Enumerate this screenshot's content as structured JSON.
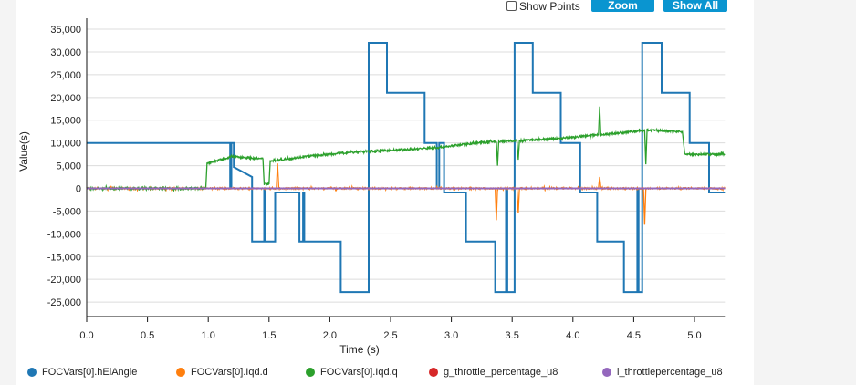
{
  "toolbar": {
    "show_points_label": "Show Points",
    "show_points_checked": false,
    "zoom_label": "Zoom",
    "show_all_label": "Show All"
  },
  "chart_data": {
    "type": "line",
    "xlabel": "Time (s)",
    "ylabel": "Value(s)",
    "xlim": [
      0,
      5.25
    ],
    "ylim": [
      -28000,
      37000
    ],
    "x_ticks": [
      "0.0",
      "0.5",
      "1.0",
      "1.5",
      "2.0",
      "2.5",
      "3.0",
      "3.5",
      "4.0",
      "4.5",
      "5.0"
    ],
    "y_ticks": [
      "35,000",
      "30,000",
      "25,000",
      "20,000",
      "15,000",
      "10,000",
      "5,000",
      "0",
      "-5,000",
      "-10,000",
      "-15,000",
      "-20,000",
      "-25,000"
    ],
    "grid": true,
    "legend_position": "bottom",
    "series": [
      {
        "name": "FOCVars[0].hElAngle",
        "color": "#1f77b4",
        "style": "step",
        "points": [
          [
            0,
            10000
          ],
          [
            1.18,
            10000
          ],
          [
            1.18,
            0
          ],
          [
            1.19,
            0
          ],
          [
            1.19,
            10000
          ],
          [
            1.21,
            10000
          ],
          [
            1.21,
            4700
          ],
          [
            1.36,
            2500
          ],
          [
            1.36,
            -11700
          ],
          [
            1.46,
            -11700
          ],
          [
            1.46,
            0
          ],
          [
            1.47,
            0
          ],
          [
            1.47,
            -11700
          ],
          [
            1.55,
            -11700
          ],
          [
            1.55,
            -900
          ],
          [
            1.75,
            -900
          ],
          [
            1.75,
            -11700
          ],
          [
            1.78,
            -11700
          ],
          [
            1.78,
            -900
          ],
          [
            1.79,
            -900
          ],
          [
            1.79,
            -11700
          ],
          [
            2.09,
            -11700
          ],
          [
            2.09,
            -22800
          ],
          [
            2.32,
            -22800
          ],
          [
            2.32,
            32000
          ],
          [
            2.47,
            32000
          ],
          [
            2.47,
            21000
          ],
          [
            2.78,
            21000
          ],
          [
            2.78,
            10000
          ],
          [
            2.88,
            10000
          ],
          [
            2.88,
            0
          ],
          [
            2.9,
            0
          ],
          [
            2.9,
            10000
          ],
          [
            2.94,
            10000
          ],
          [
            2.94,
            -900
          ],
          [
            3.12,
            -900
          ],
          [
            3.12,
            -11700
          ],
          [
            3.36,
            -11700
          ],
          [
            3.36,
            -22800
          ],
          [
            3.45,
            -22800
          ],
          [
            3.45,
            0
          ],
          [
            3.46,
            0
          ],
          [
            3.46,
            -22800
          ],
          [
            3.52,
            -22800
          ],
          [
            3.52,
            32000
          ],
          [
            3.67,
            32000
          ],
          [
            3.67,
            21000
          ],
          [
            3.9,
            21000
          ],
          [
            3.9,
            10000
          ],
          [
            4.06,
            10000
          ],
          [
            4.06,
            -900
          ],
          [
            4.2,
            -900
          ],
          [
            4.2,
            -11700
          ],
          [
            4.42,
            -11700
          ],
          [
            4.42,
            -22800
          ],
          [
            4.53,
            -22800
          ],
          [
            4.53,
            0
          ],
          [
            4.54,
            0
          ],
          [
            4.54,
            -22800
          ],
          [
            4.57,
            -22800
          ],
          [
            4.57,
            32000
          ],
          [
            4.73,
            32000
          ],
          [
            4.73,
            21000
          ],
          [
            4.96,
            21000
          ],
          [
            4.96,
            10000
          ],
          [
            5.12,
            10000
          ],
          [
            5.12,
            -900
          ],
          [
            5.25,
            -900
          ]
        ]
      },
      {
        "name": "FOCVars[0].Iqd.d",
        "color": "#ff7f0e",
        "style": "noisy",
        "points": [
          [
            0,
            0
          ],
          [
            1.56,
            0
          ],
          [
            1.57,
            5500
          ],
          [
            1.58,
            0
          ],
          [
            3.36,
            0
          ],
          [
            3.37,
            -7000
          ],
          [
            3.38,
            0
          ],
          [
            3.54,
            0
          ],
          [
            3.55,
            -5500
          ],
          [
            3.56,
            0
          ],
          [
            4.21,
            0
          ],
          [
            4.22,
            2500
          ],
          [
            4.23,
            0
          ],
          [
            4.58,
            0
          ],
          [
            4.59,
            -8000
          ],
          [
            4.6,
            0
          ],
          [
            5.25,
            0
          ]
        ]
      },
      {
        "name": "FOCVars[0].Iqd.q",
        "color": "#2ca02c",
        "style": "noisy",
        "points": [
          [
            0,
            0
          ],
          [
            0.98,
            0
          ],
          [
            0.99,
            5500
          ],
          [
            1.2,
            7000
          ],
          [
            1.45,
            6500
          ],
          [
            1.46,
            900
          ],
          [
            1.5,
            900
          ],
          [
            1.51,
            6000
          ],
          [
            1.8,
            7000
          ],
          [
            2.2,
            8000
          ],
          [
            2.6,
            8500
          ],
          [
            2.9,
            9000
          ],
          [
            3.2,
            10000
          ],
          [
            3.37,
            10300
          ],
          [
            3.38,
            5000
          ],
          [
            3.39,
            10300
          ],
          [
            3.54,
            10500
          ],
          [
            3.55,
            6300
          ],
          [
            3.56,
            10500
          ],
          [
            3.9,
            11000
          ],
          [
            4.1,
            11500
          ],
          [
            4.21,
            11800
          ],
          [
            4.22,
            18000
          ],
          [
            4.23,
            11800
          ],
          [
            4.5,
            12500
          ],
          [
            4.59,
            12800
          ],
          [
            4.6,
            5300
          ],
          [
            4.61,
            12800
          ],
          [
            4.9,
            12500
          ],
          [
            4.92,
            7500
          ],
          [
            5.25,
            7500
          ]
        ]
      },
      {
        "name": "g_throttle_percentage_u8",
        "color": "#d62728",
        "style": "line",
        "points": [
          [
            0,
            0
          ],
          [
            5.25,
            0
          ]
        ]
      },
      {
        "name": "l_throttlepercentage_u8",
        "color": "#9467bd",
        "style": "line",
        "points": [
          [
            0,
            0
          ],
          [
            5.25,
            0
          ]
        ]
      }
    ]
  }
}
